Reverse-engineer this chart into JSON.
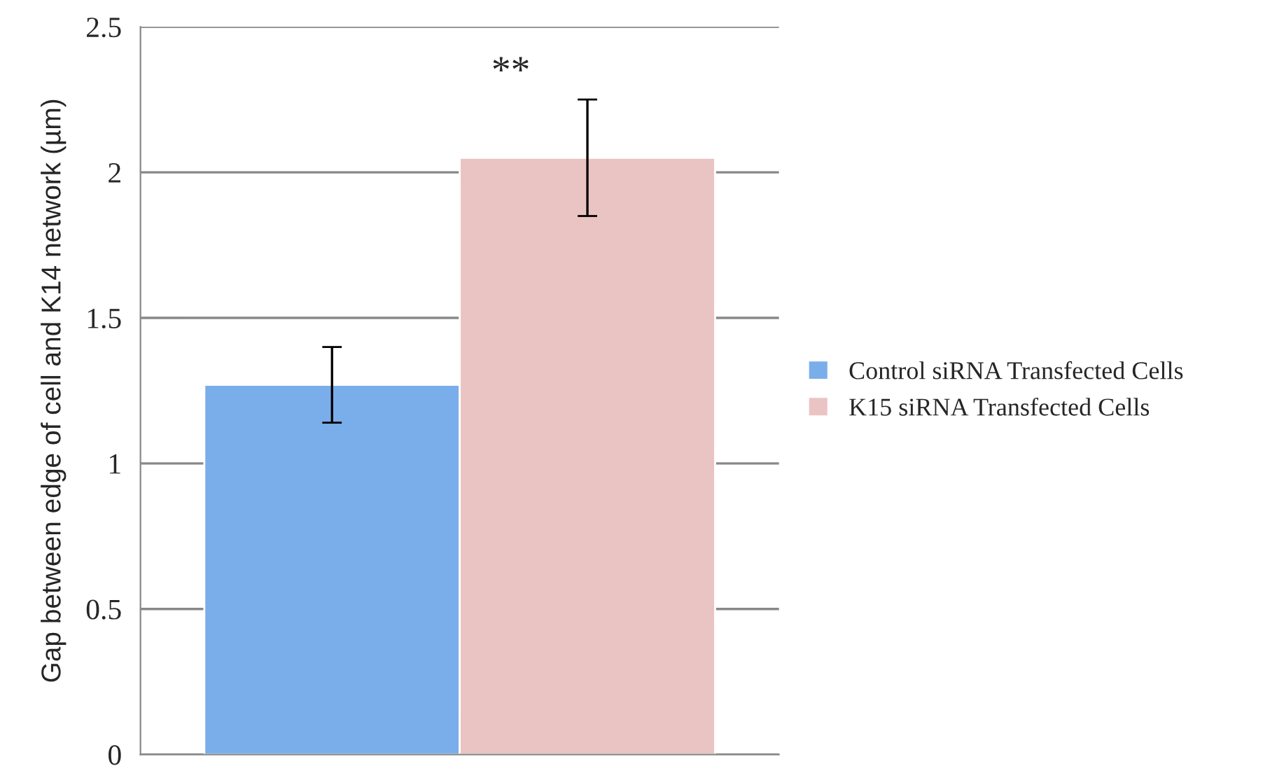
{
  "chart_data": {
    "type": "bar",
    "categories": [
      null
    ],
    "ylabel": "Gap between edge of cell and K14 network (µm)",
    "series": [
      {
        "name": "Control siRNA Transfected Cells",
        "color": "#7aaeea",
        "values": [
          1.27
        ],
        "errors": [
          0.13
        ]
      },
      {
        "name": "K15 siRNA Transfected Cells",
        "color": "#eac4c3",
        "values": [
          2.05
        ],
        "errors": [
          0.2
        ]
      }
    ],
    "ylim": [
      0,
      2.5
    ],
    "yticks": [
      0,
      0.5,
      1,
      1.5,
      2,
      2.5
    ],
    "grid": "y",
    "legend": "right",
    "annotations": [
      "**"
    ]
  }
}
